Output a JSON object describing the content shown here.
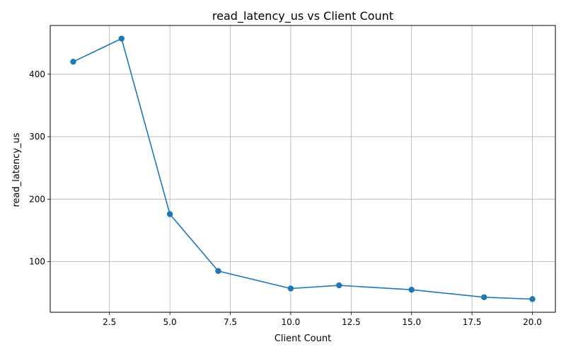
{
  "chart_data": {
    "type": "line",
    "title": "read_latency_us vs Client Count",
    "xlabel": "Client Count",
    "ylabel": "read_latency_us",
    "x": [
      1,
      3,
      5,
      7,
      10,
      12,
      15,
      18,
      20
    ],
    "series": [
      {
        "values": [
          420,
          457,
          176,
          85,
          57,
          62,
          55,
          43,
          40
        ],
        "color": "#1f77b4"
      }
    ],
    "xlim": [
      0.05,
      20.95
    ],
    "ylim": [
      19,
      478
    ],
    "xticks": [
      2.5,
      5.0,
      7.5,
      10.0,
      12.5,
      15.0,
      17.5,
      20.0
    ],
    "xtick_labels": [
      "2.5",
      "5.0",
      "7.5",
      "10.0",
      "12.5",
      "15.0",
      "17.5",
      "20.0"
    ],
    "yticks": [
      100,
      200,
      300,
      400
    ],
    "ytick_labels": [
      "100",
      "200",
      "300",
      "400"
    ],
    "grid": true,
    "marker": "circle"
  }
}
